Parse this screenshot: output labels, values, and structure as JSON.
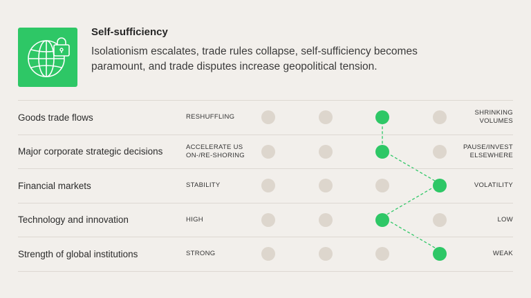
{
  "header": {
    "icon": "globe-lock-icon",
    "title": "Self-sufficiency",
    "description": "Isolationism escalates, trade rules collapse, self-sufficiency becomes paramount, and trade disputes increase geopolitical tension."
  },
  "colors": {
    "accent": "#2ec766",
    "inactive_dot": "#ddd6cd",
    "background": "#f2efeb"
  },
  "scale_steps": 4,
  "rows": [
    {
      "label": "Goods trade flows",
      "left": "RESHUFFLING",
      "right": "SHRINKING VOLUMES",
      "selected": 3
    },
    {
      "label": "Major corporate strategic decisions",
      "left": "ACCELERATE US ON-/RE-SHORING",
      "right": "PAUSE/INVEST ELSEWHERE",
      "selected": 3
    },
    {
      "label": "Financial markets",
      "left": "STABILITY",
      "right": "VOLATILITY",
      "selected": 4
    },
    {
      "label": "Technology and innovation",
      "left": "HIGH",
      "right": "LOW",
      "selected": 3
    },
    {
      "label": "Strength of global institutions",
      "left": "STRONG",
      "right": "WEAK",
      "selected": 4
    }
  ]
}
